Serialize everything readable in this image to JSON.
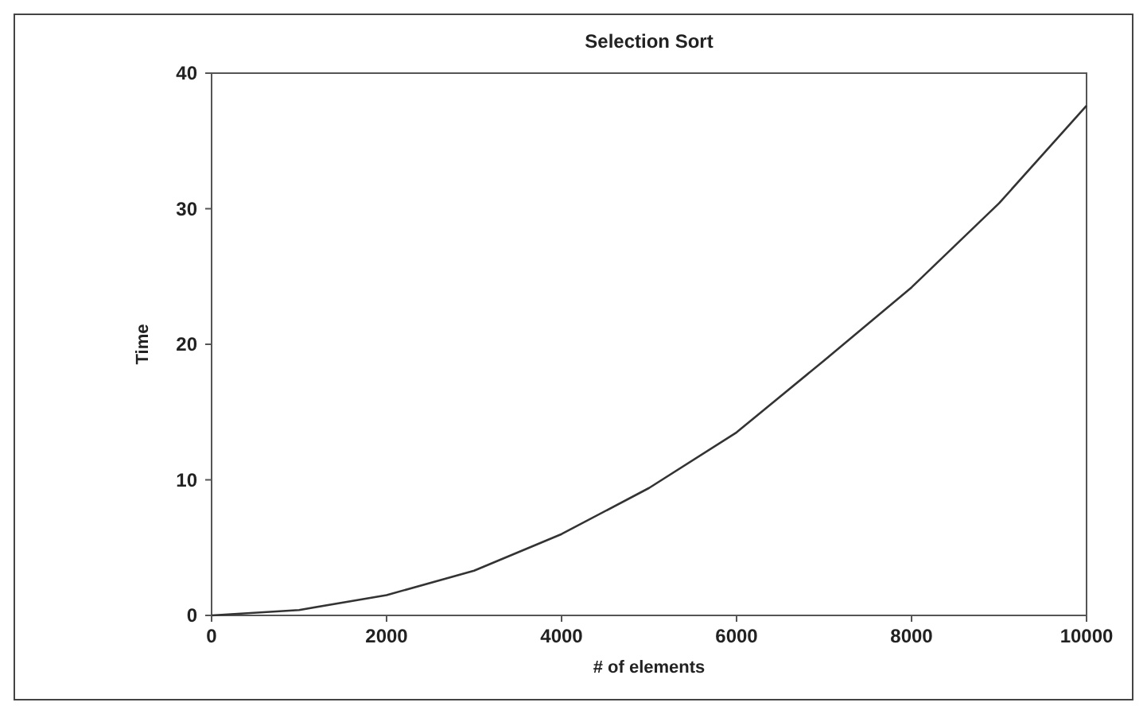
{
  "chart_data": {
    "type": "line",
    "title": "Selection Sort",
    "xlabel": "# of elements",
    "ylabel": "Time",
    "x": [
      0,
      1000,
      2000,
      3000,
      4000,
      5000,
      6000,
      7000,
      8000,
      9000,
      10000
    ],
    "series": [
      {
        "color": "#333333",
        "values": [
          0,
          0.4,
          1.5,
          3.3,
          6.0,
          9.4,
          13.5,
          18.8,
          24.2,
          30.4,
          37.6
        ]
      }
    ],
    "xlim": [
      0,
      10000
    ],
    "xticks": [
      0,
      2000,
      4000,
      6000,
      8000,
      10000
    ],
    "ylim": [
      0,
      40
    ],
    "yticks": [
      0,
      10,
      20,
      30,
      40
    ],
    "grid": false,
    "marker": "none",
    "line_style": "solid"
  }
}
